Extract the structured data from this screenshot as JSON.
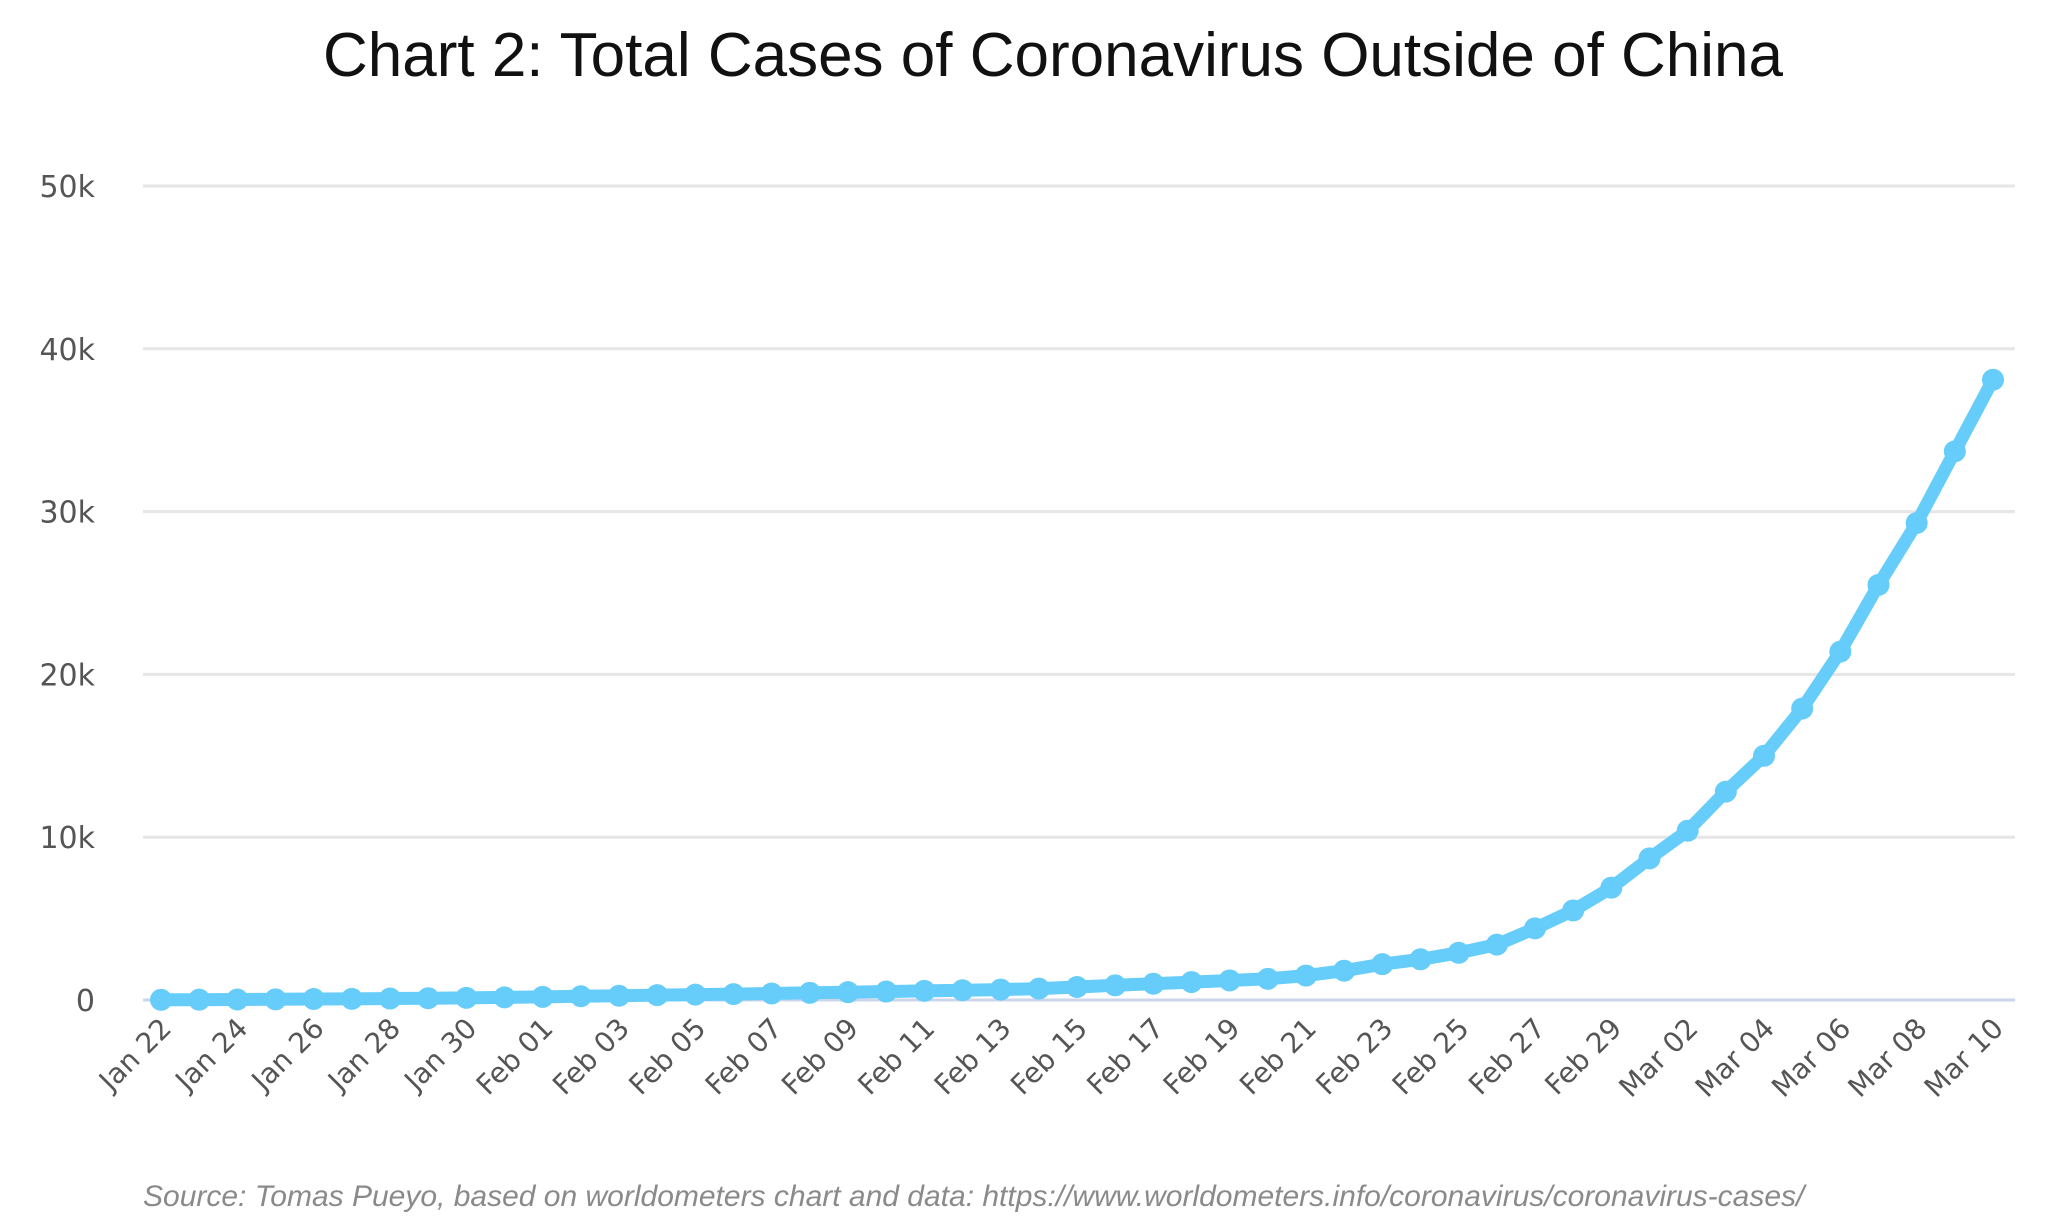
{
  "chart_data": {
    "type": "line",
    "title": "Chart 2: Total Cases of Coronavirus Outside of China",
    "source": "Source: Tomas Pueyo, based on worldometers chart and data: https://www.worldometers.info/coronavirus/coronavirus-cases/",
    "xlabel": "",
    "ylabel": "",
    "ylim": [
      0,
      50000
    ],
    "yticks": [
      0,
      10000,
      20000,
      30000,
      40000,
      50000
    ],
    "ytick_labels": [
      "0",
      "10k",
      "20k",
      "30k",
      "40k",
      "50k"
    ],
    "xtick_labels": [
      "Jan 22",
      "Jan 24",
      "Jan 26",
      "Jan 28",
      "Jan 30",
      "Feb 01",
      "Feb 03",
      "Feb 05",
      "Feb 07",
      "Feb 09",
      "Feb 11",
      "Feb 13",
      "Feb 15",
      "Feb 17",
      "Feb 19",
      "Feb 21",
      "Feb 23",
      "Feb 25",
      "Feb 27",
      "Feb 29",
      "Mar 02",
      "Mar 04",
      "Mar 06",
      "Mar 08",
      "Mar 10"
    ],
    "grid": true,
    "legend": "none",
    "color": "#66ccfa",
    "x": [
      "Jan 22",
      "Jan 23",
      "Jan 24",
      "Jan 25",
      "Jan 26",
      "Jan 27",
      "Jan 28",
      "Jan 29",
      "Jan 30",
      "Jan 31",
      "Feb 01",
      "Feb 02",
      "Feb 03",
      "Feb 04",
      "Feb 05",
      "Feb 06",
      "Feb 07",
      "Feb 08",
      "Feb 09",
      "Feb 10",
      "Feb 11",
      "Feb 12",
      "Feb 13",
      "Feb 14",
      "Feb 15",
      "Feb 16",
      "Feb 17",
      "Feb 18",
      "Feb 19",
      "Feb 20",
      "Feb 21",
      "Feb 22",
      "Feb 23",
      "Feb 24",
      "Feb 25",
      "Feb 26",
      "Feb 27",
      "Feb 28",
      "Feb 29",
      "Mar 01",
      "Mar 02",
      "Mar 03",
      "Mar 04",
      "Mar 05",
      "Mar 06",
      "Mar 07",
      "Mar 08",
      "Mar 09",
      "Mar 10"
    ],
    "values": [
      10,
      20,
      30,
      40,
      60,
      70,
      90,
      110,
      130,
      160,
      190,
      230,
      260,
      300,
      330,
      360,
      400,
      440,
      480,
      520,
      560,
      600,
      640,
      700,
      800,
      900,
      1000,
      1100,
      1200,
      1300,
      1500,
      1800,
      2200,
      2500,
      2900,
      3400,
      4400,
      5500,
      6900,
      8700,
      10400,
      12800,
      15000,
      17900,
      21400,
      25500,
      29300,
      33700,
      38100
    ]
  }
}
